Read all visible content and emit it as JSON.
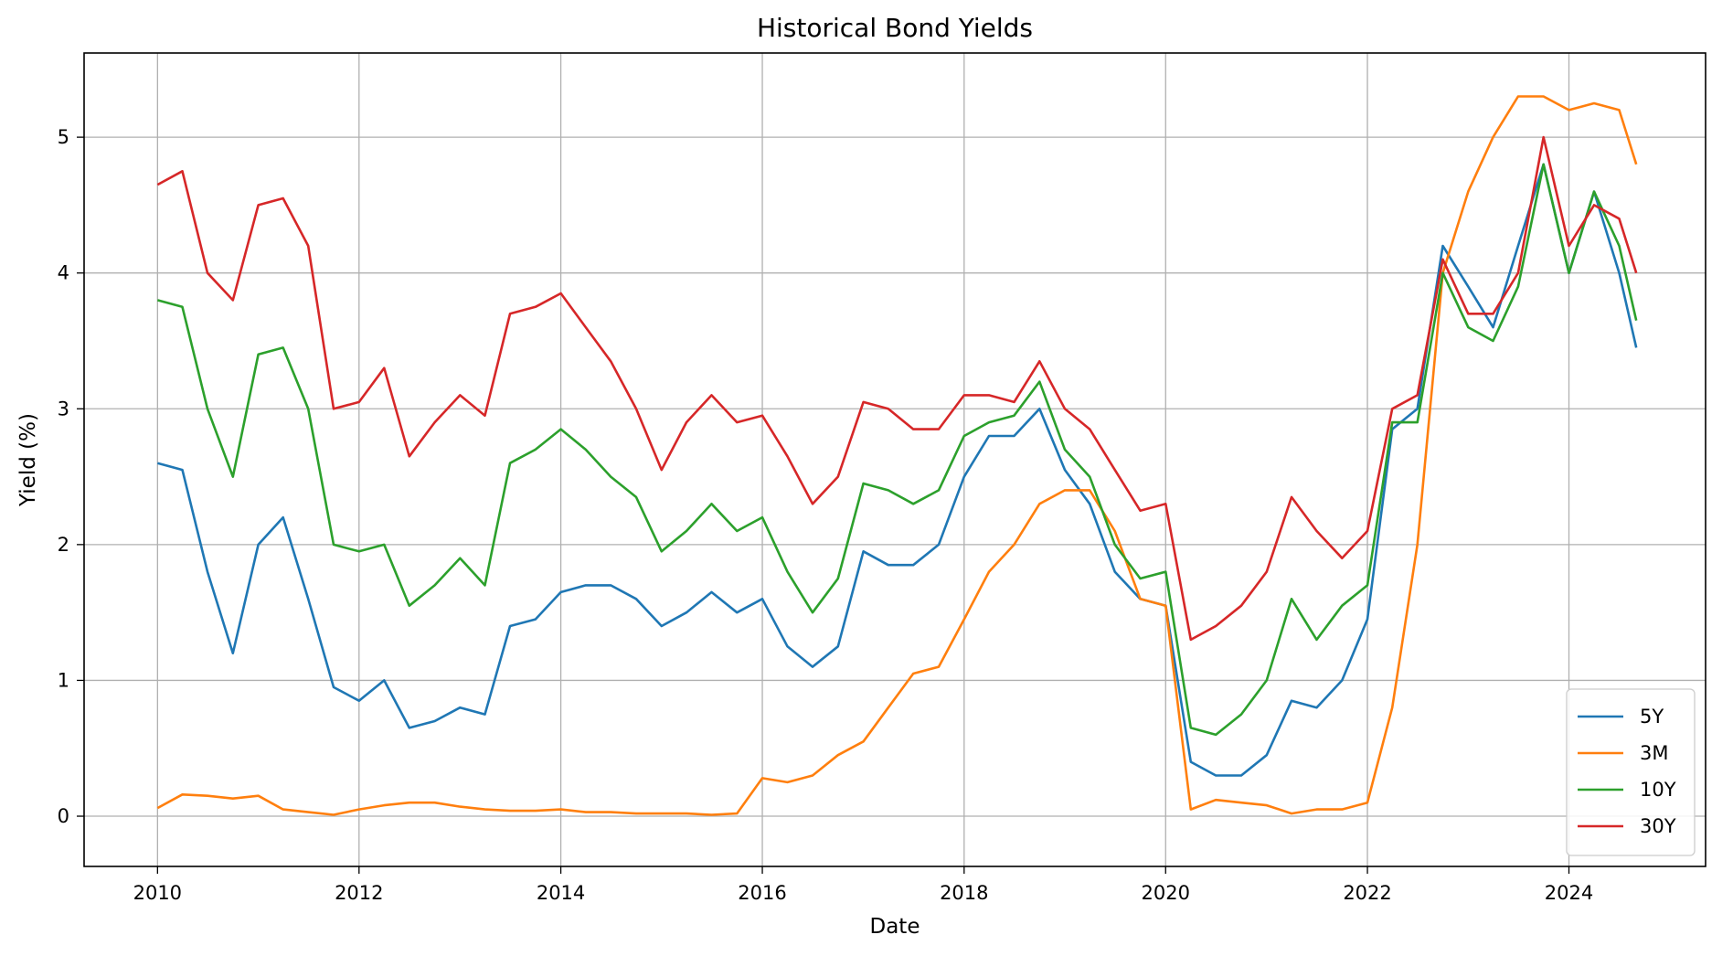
{
  "chart_data": {
    "type": "line",
    "title": "Historical Bond Yields",
    "xlabel": "Date",
    "ylabel": "Yield (%)",
    "xlim": [
      "2009-04-10",
      "2025-05-10"
    ],
    "ylim": [
      -0.37,
      5.62
    ],
    "x_ticks": [
      "2010",
      "2012",
      "2014",
      "2016",
      "2018",
      "2020",
      "2022",
      "2024"
    ],
    "y_ticks": [
      0,
      1,
      2,
      3,
      4,
      5
    ],
    "grid": true,
    "legend_position": "lower-right",
    "x": [
      "2010-01",
      "2010-04",
      "2010-07",
      "2010-10",
      "2011-01",
      "2011-04",
      "2011-07",
      "2011-10",
      "2012-01",
      "2012-04",
      "2012-07",
      "2012-10",
      "2013-01",
      "2013-04",
      "2013-07",
      "2013-10",
      "2014-01",
      "2014-04",
      "2014-07",
      "2014-10",
      "2015-01",
      "2015-04",
      "2015-07",
      "2015-10",
      "2016-01",
      "2016-04",
      "2016-07",
      "2016-10",
      "2017-01",
      "2017-04",
      "2017-07",
      "2017-10",
      "2018-01",
      "2018-04",
      "2018-07",
      "2018-10",
      "2019-01",
      "2019-04",
      "2019-07",
      "2019-10",
      "2020-01",
      "2020-04",
      "2020-07",
      "2020-10",
      "2021-01",
      "2021-04",
      "2021-07",
      "2021-10",
      "2022-01",
      "2022-04",
      "2022-07",
      "2022-10",
      "2023-01",
      "2023-04",
      "2023-07",
      "2023-10",
      "2024-01",
      "2024-04",
      "2024-07",
      "2024-09"
    ],
    "series": [
      {
        "name": "5Y",
        "color": "#1f77b4",
        "values": [
          2.6,
          2.55,
          1.8,
          1.2,
          2.0,
          2.2,
          1.6,
          0.95,
          0.85,
          1.0,
          0.65,
          0.7,
          0.8,
          0.75,
          1.4,
          1.45,
          1.65,
          1.7,
          1.7,
          1.6,
          1.4,
          1.5,
          1.65,
          1.5,
          1.6,
          1.25,
          1.1,
          1.25,
          1.95,
          1.85,
          1.85,
          2.0,
          2.5,
          2.8,
          2.8,
          3.0,
          2.55,
          2.3,
          1.8,
          1.6,
          1.55,
          0.4,
          0.3,
          0.3,
          0.45,
          0.85,
          0.8,
          1.0,
          1.45,
          2.85,
          3.0,
          4.2,
          3.9,
          3.6,
          4.2,
          4.8,
          4.0,
          4.6,
          4.0,
          3.45
        ]
      },
      {
        "name": "3M",
        "color": "#ff7f0e",
        "values": [
          0.06,
          0.16,
          0.15,
          0.13,
          0.15,
          0.05,
          0.03,
          0.01,
          0.05,
          0.08,
          0.1,
          0.1,
          0.07,
          0.05,
          0.04,
          0.04,
          0.05,
          0.03,
          0.03,
          0.02,
          0.02,
          0.02,
          0.01,
          0.02,
          0.28,
          0.25,
          0.3,
          0.45,
          0.55,
          0.8,
          1.05,
          1.1,
          1.45,
          1.8,
          2.0,
          2.3,
          2.4,
          2.4,
          2.1,
          1.6,
          1.55,
          0.05,
          0.12,
          0.1,
          0.08,
          0.02,
          0.05,
          0.05,
          0.1,
          0.8,
          2.0,
          4.0,
          4.6,
          5.0,
          5.3,
          5.3,
          5.2,
          5.25,
          5.2,
          4.8
        ]
      },
      {
        "name": "10Y",
        "color": "#2ca02c",
        "values": [
          3.8,
          3.75,
          3.0,
          2.5,
          3.4,
          3.45,
          3.0,
          2.0,
          1.95,
          2.0,
          1.55,
          1.7,
          1.9,
          1.7,
          2.6,
          2.7,
          2.85,
          2.7,
          2.5,
          2.35,
          1.95,
          2.1,
          2.3,
          2.1,
          2.2,
          1.8,
          1.5,
          1.75,
          2.45,
          2.4,
          2.3,
          2.4,
          2.8,
          2.9,
          2.95,
          3.2,
          2.7,
          2.5,
          2.0,
          1.75,
          1.8,
          0.65,
          0.6,
          0.75,
          1.0,
          1.6,
          1.3,
          1.55,
          1.7,
          2.9,
          2.9,
          4.0,
          3.6,
          3.5,
          3.9,
          4.8,
          4.0,
          4.6,
          4.2,
          3.65
        ]
      },
      {
        "name": "30Y",
        "color": "#d62728",
        "values": [
          4.65,
          4.75,
          4.0,
          3.8,
          4.5,
          4.55,
          4.2,
          3.0,
          3.05,
          3.3,
          2.65,
          2.9,
          3.1,
          2.95,
          3.7,
          3.75,
          3.85,
          3.6,
          3.35,
          3.0,
          2.55,
          2.9,
          3.1,
          2.9,
          2.95,
          2.65,
          2.3,
          2.5,
          3.05,
          3.0,
          2.85,
          2.85,
          3.1,
          3.1,
          3.05,
          3.35,
          3.0,
          2.85,
          2.55,
          2.25,
          2.3,
          1.3,
          1.4,
          1.55,
          1.8,
          2.35,
          2.1,
          1.9,
          2.1,
          3.0,
          3.1,
          4.1,
          3.7,
          3.7,
          4.0,
          5.0,
          4.2,
          4.5,
          4.4,
          4.0
        ]
      }
    ]
  }
}
